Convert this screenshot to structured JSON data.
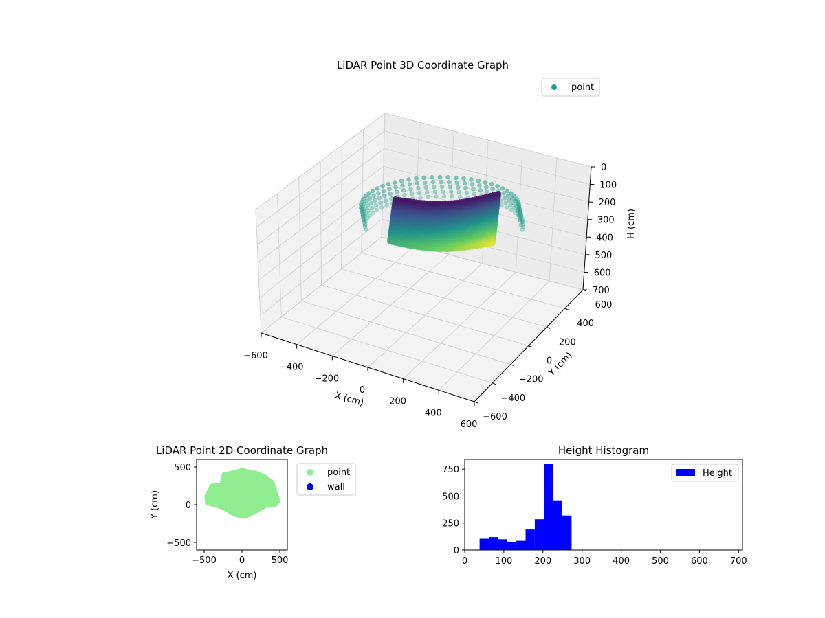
{
  "chart_data": [
    {
      "type": "scatter",
      "projection": "3d",
      "title": "LiDAR Point 3D Coordinate Graph",
      "xlabel": "X (cm)",
      "ylabel": "Y (cm)",
      "zlabel": "H (cm)",
      "xlim": [
        -600,
        600
      ],
      "ylim": [
        -600,
        600
      ],
      "zlim": [
        700,
        0
      ],
      "xticks": [
        "−600",
        "−400",
        "−200",
        "0",
        "200",
        "400",
        "600"
      ],
      "yticks": [
        "−600",
        "−400",
        "−200",
        "0",
        "200",
        "400",
        "600"
      ],
      "zticks": [
        "0",
        "100",
        "200",
        "300",
        "400",
        "500",
        "600",
        "700"
      ],
      "grid": true,
      "legend": {
        "placement": "upper-right",
        "entries": [
          {
            "name": "point",
            "color": "#21a08a"
          }
        ]
      },
      "colormap": "viridis",
      "series": [
        {
          "name": "point"
        }
      ]
    },
    {
      "type": "scatter",
      "title": "LiDAR Point 2D Coordinate Graph",
      "xlabel": "X (cm)",
      "ylabel": "Y (cm)",
      "xlim": [
        -600,
        600
      ],
      "ylim": [
        -600,
        600
      ],
      "xticks": [
        "−500",
        "0",
        "500"
      ],
      "yticks": [
        "−500",
        "0",
        "500"
      ],
      "grid": false,
      "legend": {
        "placement": "outside-right",
        "entries": [
          {
            "name": "point",
            "color": "#90ee90"
          },
          {
            "name": "wall",
            "color": "#0000ff"
          }
        ]
      },
      "outline": [
        [
          -470,
          110
        ],
        [
          -400,
          250
        ],
        [
          -270,
          270
        ],
        [
          -240,
          400
        ],
        [
          -100,
          430
        ],
        [
          10,
          460
        ],
        [
          100,
          430
        ],
        [
          190,
          420
        ],
        [
          290,
          380
        ],
        [
          400,
          300
        ],
        [
          480,
          50
        ],
        [
          440,
          0
        ],
        [
          320,
          -10
        ],
        [
          180,
          -90
        ],
        [
          40,
          -160
        ],
        [
          -100,
          -130
        ],
        [
          -230,
          -50
        ],
        [
          -330,
          -10
        ],
        [
          -460,
          20
        ],
        [
          -470,
          110
        ]
      ],
      "series": [
        {
          "name": "point",
          "color": "#90ee90"
        },
        {
          "name": "wall",
          "color": "#0000ff"
        }
      ]
    },
    {
      "type": "bar",
      "subtype": "histogram",
      "title": "Height Histogram",
      "xlim": [
        0,
        710
      ],
      "ylim": [
        0,
        840
      ],
      "xticks": [
        "0",
        "100",
        "200",
        "300",
        "400",
        "500",
        "600",
        "700"
      ],
      "yticks": [
        "0",
        "250",
        "500",
        "750"
      ],
      "legend": {
        "placement": "upper-right",
        "entries": [
          {
            "name": "Height",
            "color": "#0000ff"
          }
        ]
      },
      "bin_edges": [
        38,
        61.5,
        85,
        108.5,
        132,
        155.5,
        179,
        202.5,
        226,
        249.5,
        273
      ],
      "values": [
        105,
        120,
        100,
        70,
        85,
        190,
        285,
        800,
        460,
        320
      ],
      "series": [
        {
          "name": "Height",
          "color": "#0000ff"
        }
      ]
    }
  ]
}
